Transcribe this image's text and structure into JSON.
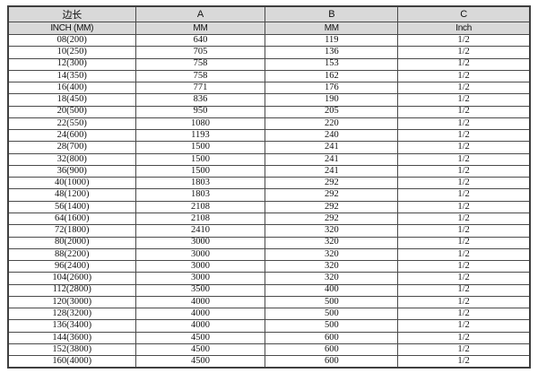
{
  "table": {
    "columns": [
      {
        "header": "边长",
        "subheader": "INCH (MM)"
      },
      {
        "header": "A",
        "subheader": "MM"
      },
      {
        "header": "B",
        "subheader": "MM"
      },
      {
        "header": "C",
        "subheader": "Inch"
      }
    ],
    "rows": [
      [
        "08(200)",
        "640",
        "119",
        "1/2"
      ],
      [
        "10(250)",
        "705",
        "136",
        "1/2"
      ],
      [
        "12(300)",
        "758",
        "153",
        "1/2"
      ],
      [
        "14(350)",
        "758",
        "162",
        "1/2"
      ],
      [
        "16(400)",
        "771",
        "176",
        "1/2"
      ],
      [
        "18(450)",
        "836",
        "190",
        "1/2"
      ],
      [
        "20(500)",
        "950",
        "205",
        "1/2"
      ],
      [
        "22(550)",
        "1080",
        "220",
        "1/2"
      ],
      [
        "24(600)",
        "1193",
        "240",
        "1/2"
      ],
      [
        "28(700)",
        "1500",
        "241",
        "1/2"
      ],
      [
        "32(800)",
        "1500",
        "241",
        "1/2"
      ],
      [
        "36(900)",
        "1500",
        "241",
        "1/2"
      ],
      [
        "40(1000)",
        "1803",
        "292",
        "1/2"
      ],
      [
        "48(1200)",
        "1803",
        "292",
        "1/2"
      ],
      [
        "56(1400)",
        "2108",
        "292",
        "1/2"
      ],
      [
        "64(1600)",
        "2108",
        "292",
        "1/2"
      ],
      [
        "72(1800)",
        "2410",
        "320",
        "1/2"
      ],
      [
        "80(2000)",
        "3000",
        "320",
        "1/2"
      ],
      [
        "88(2200)",
        "3000",
        "320",
        "1/2"
      ],
      [
        "96(2400)",
        "3000",
        "320",
        "1/2"
      ],
      [
        "104(2600)",
        "3000",
        "320",
        "1/2"
      ],
      [
        "112(2800)",
        "3500",
        "400",
        "1/2"
      ],
      [
        "120(3000)",
        "4000",
        "500",
        "1/2"
      ],
      [
        "128(3200)",
        "4000",
        "500",
        "1/2"
      ],
      [
        "136(3400)",
        "4000",
        "500",
        "1/2"
      ],
      [
        "144(3600)",
        "4500",
        "600",
        "1/2"
      ],
      [
        "152(3800)",
        "4500",
        "600",
        "1/2"
      ],
      [
        "160(4000)",
        "4500",
        "600",
        "1/2"
      ]
    ]
  },
  "colors": {
    "header_bg": "#d9d9d9",
    "border": "#4a4a4a",
    "text": "#111111"
  }
}
